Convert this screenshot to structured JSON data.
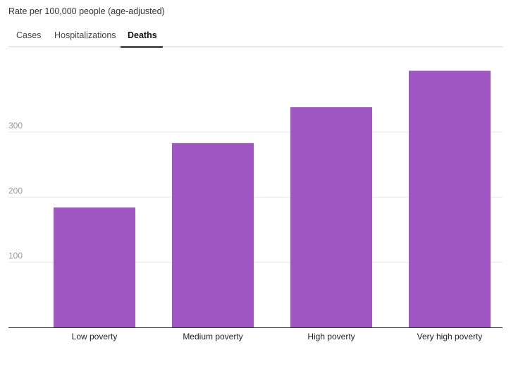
{
  "header": {
    "subtitle": "Rate per 100,000 people (age-adjusted)"
  },
  "tabs": [
    {
      "label": "Cases",
      "active": false
    },
    {
      "label": "Hospitalizations",
      "active": false
    },
    {
      "label": "Deaths",
      "active": true
    }
  ],
  "colors": {
    "bar": "#9f56c2",
    "grid": "#e6e6e6",
    "axis": "#333333",
    "tab_underline": "#555555"
  },
  "chart_data": {
    "type": "bar",
    "title": "",
    "xlabel": "",
    "ylabel": "Rate per 100,000 people (age-adjusted)",
    "categories": [
      "Low poverty",
      "Medium poverty",
      "High poverty",
      "Very high poverty"
    ],
    "values": [
      184,
      283,
      338,
      394
    ],
    "yticks": [
      100,
      200,
      300
    ],
    "ylim": [
      0,
      400
    ],
    "grid": true,
    "legend": "none"
  }
}
